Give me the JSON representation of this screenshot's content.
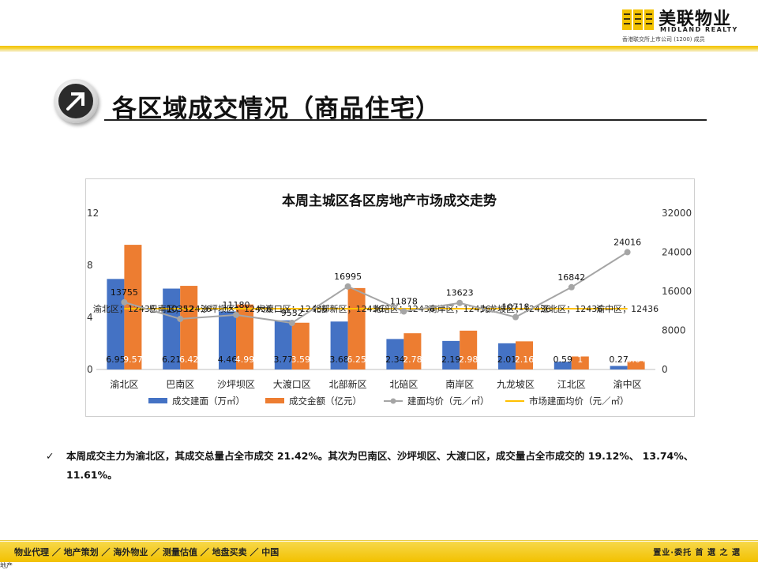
{
  "header": {
    "logo_cn": "美联物业",
    "logo_en": "MIDLAND REALTY",
    "logo_sub": "香港联交所上市公司 (1200) 成员"
  },
  "page_title": "各区域成交情况（商品住宅）",
  "note": {
    "line": "本周成交主力为渝北区，其成交总量占全市成交 21.42%。其次为巴南区、沙坪坝区、大渡口区，成交量占全市成交的 19.12%、 13.74%、 11.61%。"
  },
  "footer": {
    "nav": "物业代理 ／ 地产策划 ／ 海外物业 ／ 测量估值 ／ 地盘买卖 ／ 中国",
    "slogan": "置业·委托 首 選 之 選",
    "corner": "地产"
  },
  "colors": {
    "area": "#4472c4",
    "amount": "#ed7d31",
    "avg_price": "#a5a5a5",
    "market_avg": "#ffc000",
    "brand_yellow": "#f3c200"
  },
  "chart_data": {
    "type": "bar",
    "title": "本周主城区各区房地产市场成交走势",
    "categories": [
      "渝北区",
      "巴南区",
      "沙坪坝区",
      "大渡口区",
      "北部新区",
      "北碚区",
      "南岸区",
      "九龙坡区",
      "江北区",
      "渝中区"
    ],
    "series": [
      {
        "name": "成交建面（万㎡）",
        "type": "bar",
        "axis": "left",
        "values": [
          6.95,
          6.21,
          4.46,
          3.77,
          3.68,
          2.34,
          2.19,
          2.01,
          0.59,
          0.27
        ]
      },
      {
        "name": "成交金额（亿元）",
        "type": "bar",
        "axis": "left",
        "values": [
          9.57,
          6.42,
          4.99,
          3.59,
          6.25,
          2.78,
          2.98,
          2.16,
          1.0,
          0.64
        ]
      },
      {
        "name": "建面均价（元／㎡）",
        "type": "line",
        "axis": "right",
        "values": [
          13755,
          10352,
          11180,
          9532,
          16995,
          11878,
          13623,
          10718,
          16842,
          24016
        ]
      },
      {
        "name": "市场建面均价（元／㎡）",
        "type": "line",
        "axis": "right",
        "values": [
          12436,
          12436,
          12436,
          12436,
          12436,
          12436,
          12436,
          12436,
          12436,
          12436
        ]
      }
    ],
    "ylim_left": [
      0,
      12
    ],
    "yticks_left": [
      0,
      4,
      8,
      12
    ],
    "ylim_right": [
      0,
      32000
    ],
    "yticks_right": [
      0,
      8000,
      16000,
      24000,
      32000
    ],
    "market_labels": [
      "渝北区；12436",
      "巴南区；12436",
      "沙坪坝区；12436",
      "大渡口区；12436",
      "北部新区；12436",
      "北碚区；12436",
      "南岸区；12436",
      "九龙坡区；12436",
      "江北区；12436",
      "渝中区；12436"
    ],
    "legend_position": "bottom",
    "grid": false
  }
}
